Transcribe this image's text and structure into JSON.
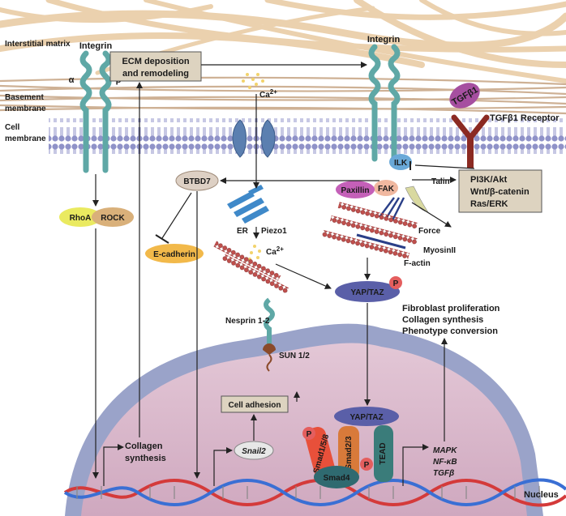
{
  "regions": {
    "interstitial_matrix": "Interstitial matrix",
    "basement_membrane": "Basement membrane",
    "cell_membrane": "Cell membrane",
    "nucleus": "Nucleus"
  },
  "receptors": {
    "integrin_left": "Integrin",
    "integrin_right": "Integrin",
    "alpha": "α",
    "beta": "β",
    "tgfb1": "TGFβ1",
    "tgfb1_receptor": "TGFβ1 Receptor"
  },
  "ions": {
    "ca_top": "Ca2+",
    "ca_mid": "Ca2+"
  },
  "boxes": {
    "ecm": [
      "ECM deposition",
      "and remodeling"
    ],
    "pathways": [
      "PI3K/Akt",
      "Wnt/β-catenin",
      "Ras/ERK"
    ],
    "cell_adhesion": "Cell adhesion"
  },
  "proteins": {
    "rhoa": "RhoA",
    "rock": "ROCK",
    "btbd7": "BTBD7",
    "ecadherin": "E-cadherin",
    "ilk": "ILK",
    "talin": "Talin",
    "fak": "FAK",
    "paxillin": "Paxillin",
    "force": "Force",
    "myosin": "MyosinII",
    "factin": "F-actin",
    "er": "ER",
    "piezo1": "Piezo1",
    "yap_taz_cyto": "YAP/TAZ",
    "yap_taz_nuc": "YAP/TAZ",
    "p": "P",
    "nesprin": "Nesprin 1-2",
    "sun": "SUN 1/2",
    "smad158": "Smad1/5/8",
    "smad23": "Smad2/3",
    "smad4": "Smad4",
    "tead": "TEAD",
    "snail2": "Snail2"
  },
  "outcomes": {
    "fibroblast": [
      "Fibroblast proliferation",
      "Collagen synthesis",
      "Phenotype conversion"
    ],
    "collagen_synthesis": [
      "Collagen",
      "synthesis"
    ],
    "targets": [
      "MAPK",
      "NF-κB",
      "TGFβ"
    ]
  },
  "colors": {
    "membrane": "#8f92c8",
    "nucleus": "#d5b7c9",
    "nuclear_envelope": "#9aa3c9",
    "matrix_fiber": "#e8c9a0",
    "box_fill": "#ddd3c0"
  }
}
